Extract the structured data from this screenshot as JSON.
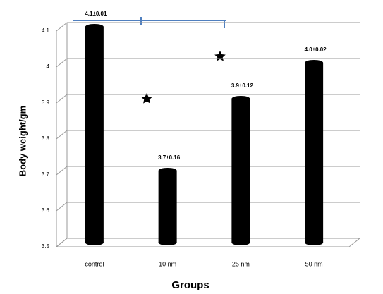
{
  "chart_data": {
    "type": "bar",
    "categories": [
      "control",
      "10 nm",
      "25 nm",
      "50 nm"
    ],
    "values": [
      4.1,
      3.7,
      3.9,
      4.0
    ],
    "value_labels": [
      "4.1±0.01",
      "3.7±0.16",
      "3.9±0.12",
      "4.0±0.02"
    ],
    "color": "#000000",
    "x_label": "Groups",
    "y_label": "Body weight/gm",
    "ylim": [
      3.5,
      4.1
    ],
    "yticks": [
      3.5,
      3.6,
      3.7,
      3.8,
      3.9,
      4,
      4.1
    ],
    "grid": true
  }
}
